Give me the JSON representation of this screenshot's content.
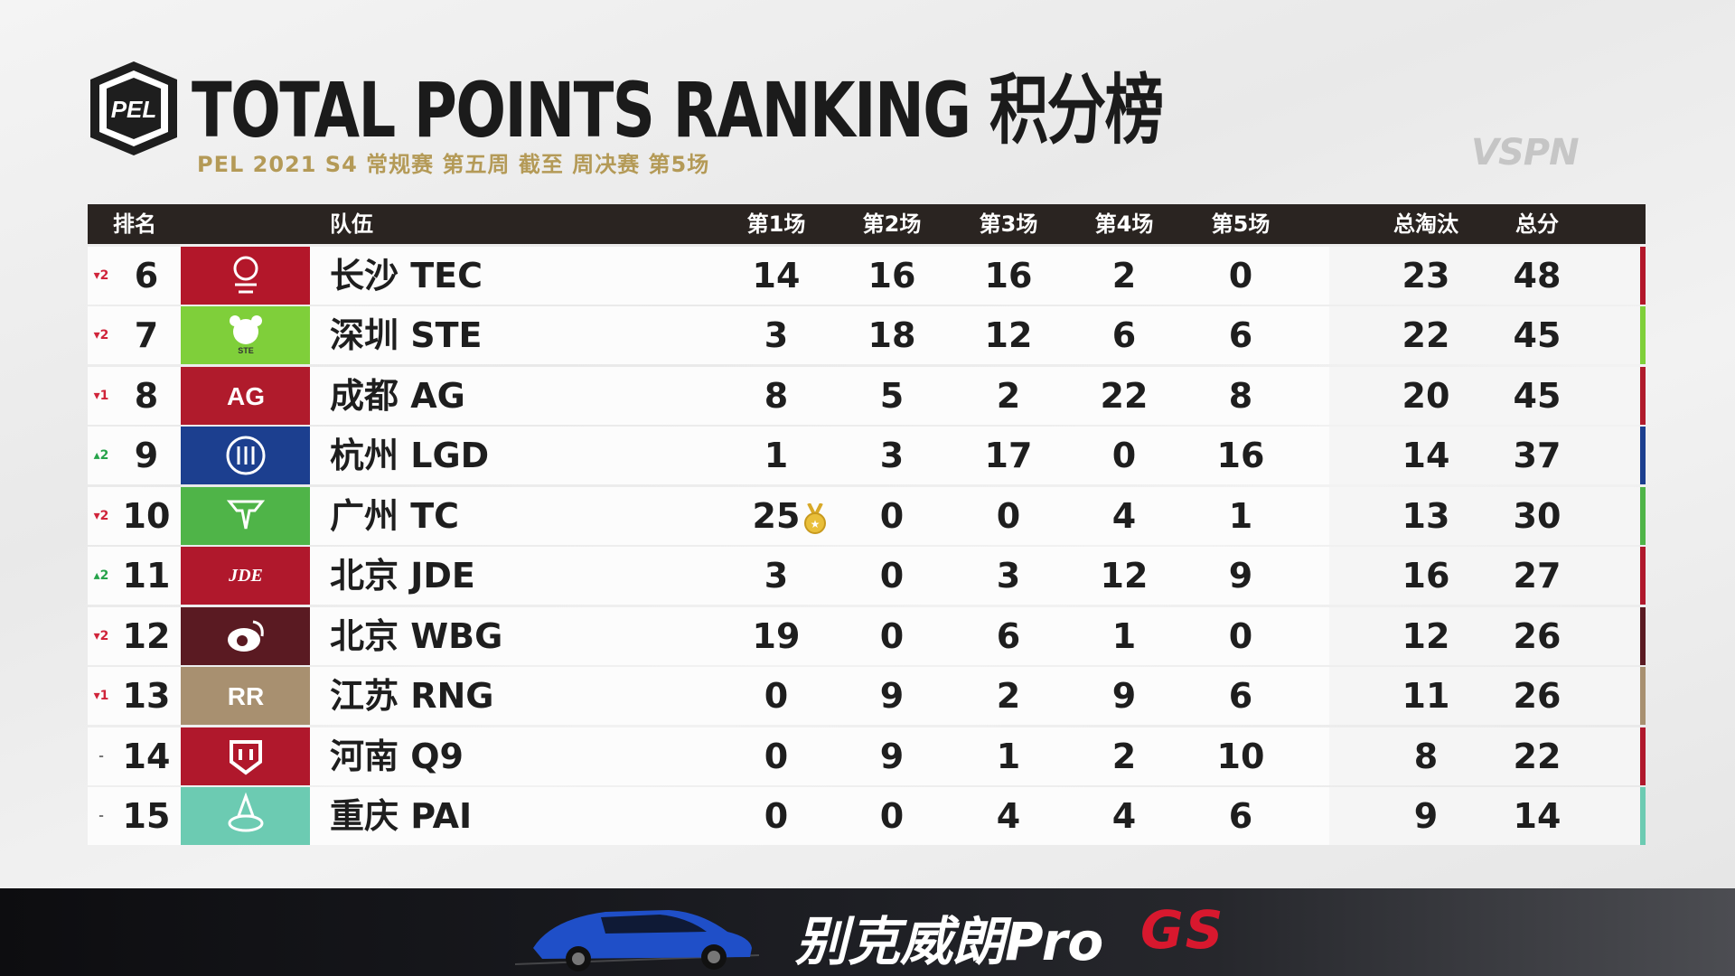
{
  "header": {
    "logo_text": "PEL",
    "title": "TOTAL POINTS RANKING 积分榜",
    "subtitle": "PEL 2021 S4 常规赛 第五周 截至 周决赛 第5场",
    "watermark": "VSPN"
  },
  "table": {
    "columns": {
      "rank": "排名",
      "team": "队伍",
      "m1": "第1场",
      "m2": "第2场",
      "m3": "第3场",
      "m4": "第4场",
      "m5": "第5场",
      "eliminations": "总淘汰",
      "total": "总分"
    },
    "rows": [
      {
        "change": "▾2",
        "dir": "down",
        "rank": "6",
        "team": "长沙 TEC",
        "m1": "14",
        "m2": "16",
        "m3": "16",
        "m4": "2",
        "m5": "0",
        "elim": "23",
        "total": "48",
        "color": "#b3172a",
        "icon": "tec-logo-icon"
      },
      {
        "change": "▾2",
        "dir": "down",
        "rank": "7",
        "team": "深圳 STE",
        "m1": "3",
        "m2": "18",
        "m3": "12",
        "m4": "6",
        "m5": "6",
        "elim": "22",
        "total": "45",
        "color": "#7fcf3a",
        "icon": "ste-logo-icon"
      },
      {
        "change": "▾1",
        "dir": "down",
        "rank": "8",
        "team": "成都 AG",
        "m1": "8",
        "m2": "5",
        "m3": "2",
        "m4": "22",
        "m5": "8",
        "elim": "20",
        "total": "45",
        "color": "#b01b2c",
        "icon": "ag-logo-icon"
      },
      {
        "change": "▴2",
        "dir": "up",
        "rank": "9",
        "team": "杭州 LGD",
        "m1": "1",
        "m2": "3",
        "m3": "17",
        "m4": "0",
        "m5": "16",
        "elim": "14",
        "total": "37",
        "color": "#1c3f8f",
        "icon": "lgd-logo-icon"
      },
      {
        "change": "▾2",
        "dir": "down",
        "rank": "10",
        "team": "广州 TC",
        "m1": "25",
        "m2": "0",
        "m3": "0",
        "m4": "4",
        "m5": "1",
        "elim": "13",
        "total": "30",
        "color": "#4fb448",
        "icon": "tc-logo-icon",
        "medal": true
      },
      {
        "change": "▴2",
        "dir": "up",
        "rank": "11",
        "team": "北京 JDE",
        "m1": "3",
        "m2": "0",
        "m3": "3",
        "m4": "12",
        "m5": "9",
        "elim": "16",
        "total": "27",
        "color": "#b0182c",
        "icon": "jde-logo-icon"
      },
      {
        "change": "▾2",
        "dir": "down",
        "rank": "12",
        "team": "北京 WBG",
        "m1": "19",
        "m2": "0",
        "m3": "6",
        "m4": "1",
        "m5": "0",
        "elim": "12",
        "total": "26",
        "color": "#5a1a22",
        "icon": "wbg-logo-icon"
      },
      {
        "change": "▾1",
        "dir": "down",
        "rank": "13",
        "team": "江苏 RNG",
        "m1": "0",
        "m2": "9",
        "m3": "2",
        "m4": "9",
        "m5": "6",
        "elim": "11",
        "total": "26",
        "color": "#a89070",
        "icon": "rng-logo-icon"
      },
      {
        "change": "-",
        "dir": "same",
        "rank": "14",
        "team": "河南 Q9",
        "m1": "0",
        "m2": "9",
        "m3": "1",
        "m4": "2",
        "m5": "10",
        "elim": "8",
        "total": "22",
        "color": "#b0182c",
        "icon": "q9-logo-icon"
      },
      {
        "change": "-",
        "dir": "same",
        "rank": "15",
        "team": "重庆 PAI",
        "m1": "0",
        "m2": "0",
        "m3": "4",
        "m4": "4",
        "m5": "6",
        "elim": "9",
        "total": "14",
        "color": "#6ccbb2",
        "icon": "pai-logo-icon"
      }
    ]
  },
  "banner": {
    "text": "别克威朗Pro",
    "badge": "GS"
  }
}
